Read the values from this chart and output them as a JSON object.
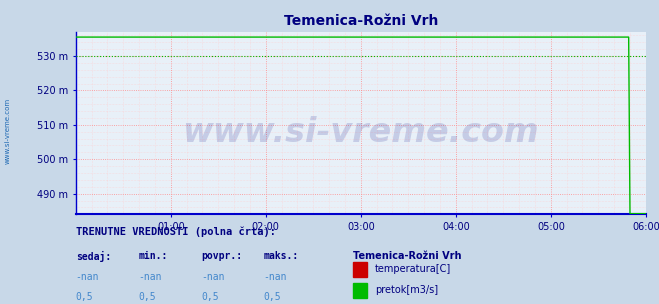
{
  "title": "Temenica-Rožni Vrh",
  "title_color": "#000080",
  "title_fontsize": 10,
  "plot_bg_color": "#e8f0f8",
  "fig_bg_color": "#c8d8e8",
  "xlim": [
    0,
    432
  ],
  "ylim": [
    484,
    537
  ],
  "yticks": [
    490,
    500,
    510,
    520,
    530
  ],
  "ytick_labels": [
    "490 m",
    "500 m",
    "510 m",
    "520 m",
    "530 m"
  ],
  "xtick_positions": [
    72,
    144,
    216,
    288,
    360,
    432
  ],
  "xtick_labels": [
    "01:00",
    "02:00",
    "03:00",
    "04:00",
    "05:00",
    "06:00"
  ],
  "major_grid_color": "#ff8888",
  "minor_grid_color": "#ffcccc",
  "watermark": "www.si-vreme.com",
  "watermark_color": "#000080",
  "watermark_fontsize": 24,
  "sidebar_text": "www.si-vreme.com",
  "sidebar_color": "#0055aa",
  "green_line_color": "#00bb00",
  "red_line_color": "#cc0000",
  "blue_axis_color": "#0000cc",
  "red_arrow_color": "#cc0000",
  "n_points": 432,
  "drop_point": 420,
  "flow_y_high": 535.5,
  "flow_y_low": 484.2,
  "bottom_label1": "TRENUTNE VREDNOSTI (polna črta):",
  "col_headers": [
    "sedaj:",
    "min.:",
    "povpr.:",
    "maks.:"
  ],
  "temp_row": [
    "-nan",
    "-nan",
    "-nan",
    "-nan"
  ],
  "flow_row": [
    "0,5",
    "0,5",
    "0,5",
    "0,5"
  ],
  "legend_station": "Temenica-Rožni Vrh",
  "legend1_color": "#cc0000",
  "legend1_label": "temperatura[C]",
  "legend2_color": "#00bb00",
  "legend2_label": "pretok[m3/s]"
}
